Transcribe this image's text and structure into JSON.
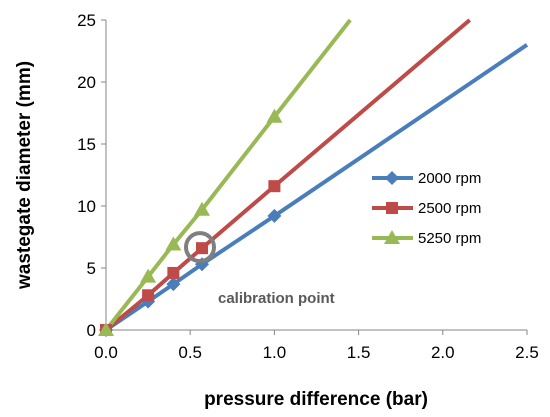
{
  "chart_data": {
    "type": "line",
    "xlabel": "pressure difference (bar)",
    "ylabel": "wastegate diameter (mm)",
    "xlim": [
      0,
      2.5
    ],
    "ylim": [
      0,
      25
    ],
    "x_ticks": [
      "0.0",
      "0.5",
      "1.0",
      "1.5",
      "2.0",
      "2.5"
    ],
    "y_ticks": [
      "0",
      "5",
      "10",
      "15",
      "20",
      "25"
    ],
    "grid": false,
    "legend_position": "right",
    "series": [
      {
        "name": "2000 rpm",
        "color": "#4a7ebb",
        "marker": "diamond",
        "points": [
          [
            0,
            0
          ],
          [
            0.25,
            2.3
          ],
          [
            0.4,
            3.7
          ],
          [
            0.57,
            5.3
          ],
          [
            1.0,
            9.2
          ]
        ],
        "trend_to": [
          2.5,
          23.0
        ]
      },
      {
        "name": "2500 rpm",
        "color": "#be4b48",
        "marker": "square",
        "points": [
          [
            0,
            0
          ],
          [
            0.25,
            2.8
          ],
          [
            0.4,
            4.6
          ],
          [
            0.57,
            6.6
          ],
          [
            1.0,
            11.6
          ]
        ],
        "trend_to": [
          2.16,
          25.0
        ]
      },
      {
        "name": "5250 rpm",
        "color": "#98b954",
        "marker": "triangle",
        "points": [
          [
            0,
            0
          ],
          [
            0.25,
            4.3
          ],
          [
            0.4,
            6.9
          ],
          [
            0.57,
            9.7
          ],
          [
            1.0,
            17.2
          ]
        ],
        "trend_to": [
          1.45,
          25.0
        ]
      }
    ],
    "annotations": [
      {
        "text": "calibration point",
        "at": [
          0.57,
          6.6
        ],
        "marker": "circle",
        "color": "#7f7f7f"
      }
    ]
  }
}
